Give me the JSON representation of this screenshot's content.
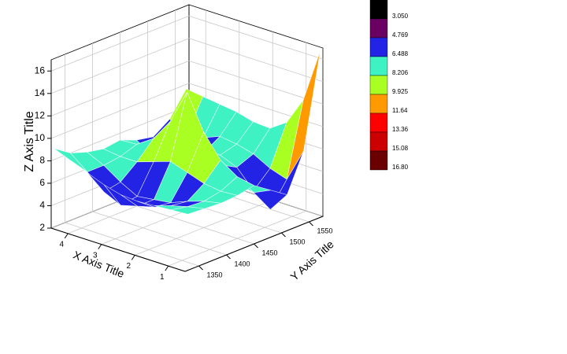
{
  "chart_data": {
    "type": "surface3d",
    "xlabel": "X Axis Title",
    "ylabel": "Y Axis Title",
    "zlabel": "Z Axis Title",
    "xlim": [
      0.5,
      4.5
    ],
    "xticks": [
      1,
      2,
      3,
      4
    ],
    "ylim": [
      1325,
      1575
    ],
    "yticks": [
      1350,
      1400,
      1450,
      1500,
      1550
    ],
    "zlim": [
      2,
      17
    ],
    "zticks": [
      2,
      4,
      6,
      8,
      10,
      12,
      14,
      16
    ],
    "grid": true,
    "x": [
      0.5,
      1,
      1.5,
      2,
      2.5,
      3,
      3.5,
      4,
      4.5
    ],
    "y": [
      1330,
      1360,
      1390,
      1420,
      1450,
      1480,
      1510,
      1540,
      1570
    ],
    "z": [
      [
        7.0,
        6.9,
        6.8,
        6.9,
        7.2,
        6.2,
        5.2,
        8.5,
        16.8
      ],
      [
        6.9,
        6.6,
        6.5,
        6.8,
        7.5,
        5.5,
        3.4,
        5.5,
        12.0
      ],
      [
        6.8,
        6.2,
        6.0,
        7.0,
        8.5,
        5.8,
        4.6,
        6.0,
        9.5
      ],
      [
        6.7,
        5.6,
        5.4,
        7.5,
        10.5,
        7.0,
        6.2,
        6.8,
        8.5
      ],
      [
        6.8,
        5.2,
        5.2,
        8.0,
        13.6,
        8.0,
        6.8,
        7.2,
        8.6
      ],
      [
        7.2,
        4.8,
        5.0,
        7.5,
        10.5,
        7.5,
        6.5,
        7.4,
        9.0
      ],
      [
        7.8,
        5.5,
        5.8,
        7.0,
        8.5,
        6.2,
        5.2,
        6.8,
        9.2
      ],
      [
        8.4,
        6.8,
        6.8,
        7.0,
        7.5,
        5.8,
        5.0,
        6.5,
        9.4
      ],
      [
        9.0,
        8.0,
        7.5,
        7.2,
        7.4,
        6.8,
        6.5,
        7.5,
        9.6
      ]
    ],
    "colormap": {
      "levels": [
        {
          "value": 3.05,
          "label": "3.050"
        },
        4.769,
        6.488,
        8.206,
        9.925,
        11.64,
        13.36,
        15.08,
        {
          "value": 16.8,
          "label": "16.80"
        }
      ],
      "colors": [
        "#000000",
        "#6a0062",
        "#2323e6",
        "#3ef2c4",
        "#aaff22",
        "#ff9900",
        "#ff0000",
        "#cc0000",
        "#6a0000"
      ]
    }
  }
}
